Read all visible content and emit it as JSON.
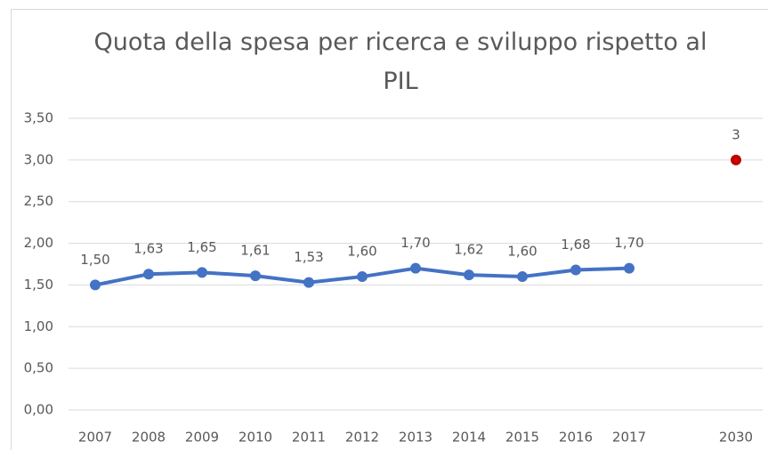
{
  "chart_data": {
    "type": "line",
    "title": "Quota della spesa per ricerca e sviluppo rispetto al PIL",
    "categories": [
      "2007",
      "2008",
      "2009",
      "2010",
      "2011",
      "2012",
      "2013",
      "2014",
      "2015",
      "2016",
      "2017",
      null,
      "2030"
    ],
    "series": [
      {
        "color": "#4472c4",
        "values": [
          1.5,
          1.63,
          1.65,
          1.61,
          1.53,
          1.6,
          1.7,
          1.62,
          1.6,
          1.68,
          1.7,
          null,
          null
        ],
        "value_labels": [
          "1,50",
          "1,63",
          "1,65",
          "1,61",
          "1,53",
          "1,60",
          "1,70",
          "1,62",
          "1,60",
          "1,68",
          "1,70",
          null,
          null
        ]
      },
      {
        "color": "#c00000",
        "values": [
          null,
          null,
          null,
          null,
          null,
          null,
          null,
          null,
          null,
          null,
          null,
          null,
          3
        ]
      }
    ],
    "ylim": [
      0,
      3.5
    ],
    "yticks": [
      {
        "value": 0,
        "label": "0,00"
      },
      {
        "value": 0.5,
        "label": "0,50"
      },
      {
        "value": 1,
        "label": "1,00"
      },
      {
        "value": 1.5,
        "label": "1,50"
      },
      {
        "value": 2,
        "label": "2,00"
      },
      {
        "value": 2.5,
        "label": "2,50"
      },
      {
        "value": 3,
        "label": "3,00"
      },
      {
        "value": 3.5,
        "label": "3,50"
      }
    ],
    "grid": true
  }
}
